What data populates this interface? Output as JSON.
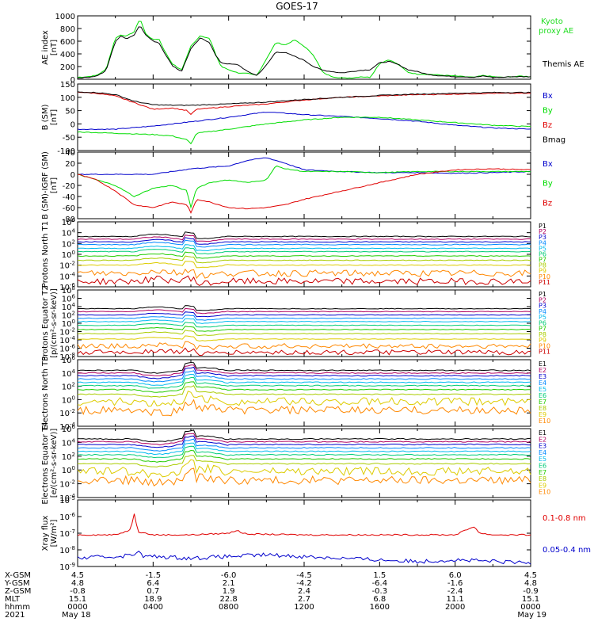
{
  "title": "GOES-17",
  "colors": {
    "black": "#000000",
    "red": "#e00000",
    "green": "#00dd00",
    "blue": "#0000cc",
    "ae_green": "#22dd22",
    "proton_channels": [
      "#000000",
      "#b00060",
      "#0000cc",
      "#0088ff",
      "#00bbee",
      "#00cc77",
      "#22cc00",
      "#aacc00",
      "#ddcc00",
      "#ff8800",
      "#cc0000"
    ],
    "electron_channels": [
      "#000000",
      "#b00060",
      "#0000cc",
      "#0088ff",
      "#00bbee",
      "#00cc77",
      "#22cc00",
      "#aacc00",
      "#ddcc00",
      "#ff8800",
      "#cc0000"
    ]
  },
  "chart_data": [
    {
      "type": "line",
      "ylabel": "AE index [nT]",
      "yticks": [
        "0",
        "200",
        "400",
        "600",
        "800",
        "1000"
      ],
      "ylim": [
        0,
        1000
      ],
      "legend": [
        "Kyoto proxy AE",
        "Themis AE"
      ],
      "series": [
        {
          "name": "Kyoto proxy AE",
          "color": "green",
          "x": [
            0,
            0.5,
            1,
            1.5,
            2,
            2.3,
            2.6,
            3,
            3.3,
            3.6,
            4,
            4.3,
            4.6,
            5,
            5.5,
            6,
            6.5,
            7,
            7.3,
            7.6,
            8,
            8.5,
            9,
            9.5,
            10,
            10.5,
            11,
            11.5,
            12,
            12.5,
            13,
            13.5,
            14,
            14.5,
            15,
            15.5,
            16,
            16.5,
            17,
            17.5,
            18,
            18.5,
            19,
            19.5,
            20,
            20.5,
            21,
            21.5,
            22,
            22.5,
            23,
            23.5,
            24
          ],
          "y": [
            30,
            40,
            60,
            150,
            650,
            700,
            680,
            750,
            960,
            720,
            620,
            640,
            450,
            250,
            140,
            520,
            690,
            640,
            400,
            200,
            150,
            100,
            90,
            60,
            320,
            580,
            540,
            620,
            520,
            380,
            100,
            40,
            20,
            20,
            40,
            30,
            250,
            310,
            230,
            110,
            80,
            80,
            70,
            60,
            50,
            40,
            30,
            60,
            40,
            30,
            40,
            50,
            40
          ]
        },
        {
          "name": "Themis AE",
          "color": "black",
          "x": [
            0,
            0.5,
            1,
            1.5,
            2,
            2.3,
            2.6,
            3,
            3.3,
            3.6,
            4,
            4.3,
            4.6,
            5,
            5.5,
            6,
            6.5,
            7,
            7.3,
            7.6,
            8,
            8.5,
            9,
            9.5,
            10,
            10.5,
            11,
            11.5,
            12,
            12.5,
            13,
            13.5,
            14,
            14.5,
            15,
            15.5,
            16,
            16.5,
            17,
            17.5,
            18,
            18.5,
            19,
            19.5,
            20,
            20.5,
            21,
            21.5,
            22,
            22.5,
            23,
            23.5,
            24
          ],
          "y": [
            20,
            30,
            50,
            130,
            600,
            680,
            640,
            700,
            860,
            700,
            600,
            580,
            420,
            220,
            120,
            480,
            650,
            580,
            380,
            260,
            240,
            230,
            120,
            60,
            220,
            430,
            420,
            360,
            300,
            200,
            140,
            120,
            100,
            120,
            140,
            150,
            260,
            280,
            230,
            150,
            120,
            80,
            60,
            50,
            40,
            40,
            30,
            50,
            30,
            30,
            40,
            40,
            40
          ]
        }
      ]
    },
    {
      "type": "line",
      "ylabel": "B (SM) [nT]",
      "yticks": [
        "-100",
        "-50",
        "0",
        "50",
        "100",
        "150"
      ],
      "ylim": [
        -100,
        150
      ],
      "legend": [
        "Bx",
        "By",
        "Bz",
        "Bmag"
      ],
      "series": [
        {
          "name": "Bx",
          "color": "blue",
          "x": [
            0,
            2,
            4,
            6,
            8,
            10,
            12,
            14,
            16,
            18,
            20,
            22,
            24
          ],
          "y": [
            -20,
            -20,
            -8,
            8,
            25,
            45,
            35,
            28,
            20,
            10,
            -5,
            -15,
            -20
          ]
        },
        {
          "name": "By",
          "color": "green",
          "x": [
            0,
            2,
            4,
            5,
            5.8,
            6,
            6.3,
            8,
            10,
            12,
            14,
            16,
            18,
            20,
            22,
            24
          ],
          "y": [
            -30,
            -35,
            -40,
            -45,
            -60,
            -75,
            -35,
            -20,
            0,
            15,
            25,
            25,
            15,
            5,
            -5,
            -10
          ]
        },
        {
          "name": "Bz",
          "color": "red",
          "x": [
            0,
            1,
            2,
            3,
            4,
            5,
            5.8,
            6,
            6.3,
            8,
            10,
            12,
            14,
            16,
            18,
            20,
            22,
            24
          ],
          "y": [
            120,
            115,
            105,
            80,
            55,
            60,
            50,
            35,
            55,
            65,
            75,
            90,
            100,
            105,
            110,
            112,
            115,
            115
          ]
        },
        {
          "name": "Bmag",
          "color": "black",
          "x": [
            0,
            1,
            2,
            3,
            4,
            5,
            6,
            8,
            10,
            12,
            14,
            16,
            18,
            20,
            22,
            24
          ],
          "y": [
            120,
            118,
            110,
            85,
            72,
            70,
            70,
            75,
            82,
            92,
            100,
            107,
            112,
            115,
            118,
            118
          ]
        }
      ]
    },
    {
      "type": "line",
      "ylabel": "B (SM)-IGRF (SM) [nT]",
      "yticks": [
        "-80",
        "-60",
        "-40",
        "-20",
        "0",
        "20",
        "40"
      ],
      "ylim": [
        -80,
        40
      ],
      "legend": [
        "Bx",
        "By",
        "Bz"
      ],
      "series": [
        {
          "name": "Bx",
          "color": "blue",
          "x": [
            0,
            2,
            4,
            6,
            8,
            9,
            10,
            11,
            12,
            14,
            16,
            18,
            20,
            22,
            24
          ],
          "y": [
            0,
            0,
            0,
            10,
            15,
            25,
            30,
            20,
            8,
            5,
            3,
            3,
            2,
            3,
            5
          ]
        },
        {
          "name": "By",
          "color": "green",
          "x": [
            0,
            1,
            2,
            3,
            4,
            5,
            5.8,
            6,
            6.3,
            7,
            8,
            9,
            10,
            10.5,
            11,
            12,
            14,
            16,
            18,
            20,
            22,
            24
          ],
          "y": [
            0,
            -10,
            -20,
            -40,
            -25,
            -20,
            -30,
            -60,
            -25,
            -15,
            -10,
            -15,
            -10,
            15,
            10,
            5,
            5,
            3,
            5,
            5,
            5,
            5
          ]
        },
        {
          "name": "Bz",
          "color": "red",
          "x": [
            0,
            1,
            2,
            3,
            4,
            5,
            5.8,
            6,
            6.3,
            7,
            8,
            9,
            10,
            11,
            12,
            14,
            16,
            18,
            20,
            22,
            24
          ],
          "y": [
            0,
            -10,
            -30,
            -55,
            -60,
            -50,
            -55,
            -70,
            -45,
            -50,
            -60,
            -62,
            -60,
            -55,
            -45,
            -30,
            -15,
            0,
            8,
            10,
            8
          ]
        }
      ]
    },
    {
      "type": "line",
      "ylabel": "Protons North T1",
      "yticks": [
        "10^-6",
        "10^-4",
        "10^-2",
        "10^0",
        "10^2",
        "10^4",
        "10^6"
      ],
      "yscale": "log",
      "ylim": [
        1e-06,
        1000000.0
      ],
      "legend": [
        "P1",
        "P2",
        "P3",
        "P4",
        "P5",
        "P6",
        "P7",
        "P8",
        "P9",
        "P10",
        "P11"
      ],
      "levels_log10": [
        3.3,
        2.8,
        2.3,
        1.8,
        1.1,
        0.5,
        -0.3,
        -1.1,
        -2.0,
        -3.5,
        -5.0
      ]
    },
    {
      "type": "line",
      "ylabel": "Protons Equator T2 [p/(cm²-s-sr-keV)]",
      "yticks": [
        "10^-8",
        "10^-6",
        "10^-4",
        "10^-2",
        "10^0",
        "10^2",
        "10^4",
        "10^6",
        "10^8"
      ],
      "yscale": "log",
      "ylim": [
        1e-08,
        100000000.0
      ],
      "legend": [
        "P1",
        "P2",
        "P3",
        "P4",
        "P5",
        "P6",
        "P7",
        "P8",
        "P9",
        "P10",
        "P11"
      ],
      "levels_log10": [
        3.5,
        2.8,
        2.0,
        1.2,
        0.4,
        -0.5,
        -1.5,
        -2.5,
        -3.8,
        -5.5,
        -7.0
      ]
    },
    {
      "type": "line",
      "ylabel": "Electrons North T3",
      "yticks": [
        "10^-4",
        "10^-2",
        "10^0",
        "10^2",
        "10^4",
        "10^6"
      ],
      "yscale": "log",
      "ylim": [
        0.0001,
        1000000.0
      ],
      "legend": [
        "E1",
        "E2",
        "E3",
        "E4",
        "E5",
        "E6",
        "E7",
        "E8",
        "E9",
        "E10"
      ],
      "levels_log10": [
        4.4,
        4.0,
        3.6,
        3.1,
        2.6,
        2.1,
        1.5,
        0.8,
        -0.3,
        -1.6
      ]
    },
    {
      "type": "line",
      "ylabel": "Electrons Equator T4 [e/(cm²-s-sr-keV)]",
      "yticks": [
        "10^-4",
        "10^-2",
        "10^0",
        "10^2",
        "10^4",
        "10^6"
      ],
      "yscale": "log",
      "ylim": [
        0.0001,
        1000000.0
      ],
      "legend": [
        "E1",
        "E2",
        "E3",
        "E4",
        "E5",
        "E6",
        "E7",
        "E8",
        "E9",
        "E10"
      ],
      "levels_log10": [
        4.5,
        4.1,
        3.7,
        3.2,
        2.7,
        2.2,
        1.6,
        0.9,
        -0.2,
        -1.5
      ]
    },
    {
      "type": "line",
      "ylabel": "Xray flux [W/m²]",
      "yticks": [
        "10^-9",
        "10^-8",
        "10^-7",
        "10^-6",
        "10^-5"
      ],
      "yscale": "log",
      "ylim": [
        1e-09,
        1e-05
      ],
      "legend": [
        "0.1-0.8 nm",
        "0.05-0.4 nm"
      ],
      "series": [
        {
          "name": "0.1-0.8 nm",
          "color": "red",
          "x": [
            0,
            2,
            2.8,
            3,
            3.2,
            4,
            6,
            8,
            8.5,
            8.7,
            9,
            12,
            16,
            20,
            20.8,
            21,
            21.3,
            22,
            24
          ],
          "y_log10": [
            -7.1,
            -7.1,
            -6.8,
            -5.8,
            -6.9,
            -7.1,
            -7.1,
            -7.0,
            -6.8,
            -7.0,
            -7.05,
            -7.1,
            -7.1,
            -7.1,
            -6.7,
            -6.6,
            -7.0,
            -7.1,
            -7.1
          ]
        },
        {
          "name": "0.05-0.4 nm",
          "color": "blue",
          "x": [
            0,
            2,
            3,
            3.2,
            3.4,
            4,
            6,
            8,
            10,
            12,
            14,
            16,
            18,
            20,
            22,
            24
          ],
          "y_log10": [
            -8.5,
            -8.4,
            -8.3,
            -7.9,
            -8.4,
            -8.4,
            -8.5,
            -8.4,
            -8.3,
            -8.4,
            -8.5,
            -8.6,
            -8.7,
            -8.6,
            -8.7,
            -8.8
          ]
        }
      ]
    }
  ],
  "xaxis": {
    "row_labels": [
      "X-GSM",
      "Y-GSM",
      "Z-GSM",
      "MLT",
      "hhmm",
      "2021"
    ],
    "columns": [
      [
        "4.5",
        "4.8",
        "-0.8",
        "15.1",
        "0000",
        "May 18"
      ],
      [
        "-1.5",
        "6.4",
        "0.7",
        "18.9",
        "0400",
        ""
      ],
      [
        "-6.0",
        "2.1",
        "1.9",
        "22.8",
        "0800",
        ""
      ],
      [
        "-4.5",
        "-4.2",
        "2.4",
        "2.7",
        "1200",
        ""
      ],
      [
        "1.5",
        "-6.4",
        "-0.3",
        "6.8",
        "1600",
        ""
      ],
      [
        "6.0",
        "-1.6",
        "-2.4",
        "11.1",
        "2000",
        ""
      ],
      [
        "4.5",
        "4.8",
        "-0.9",
        "15.1",
        "0000",
        "May 19"
      ]
    ]
  }
}
